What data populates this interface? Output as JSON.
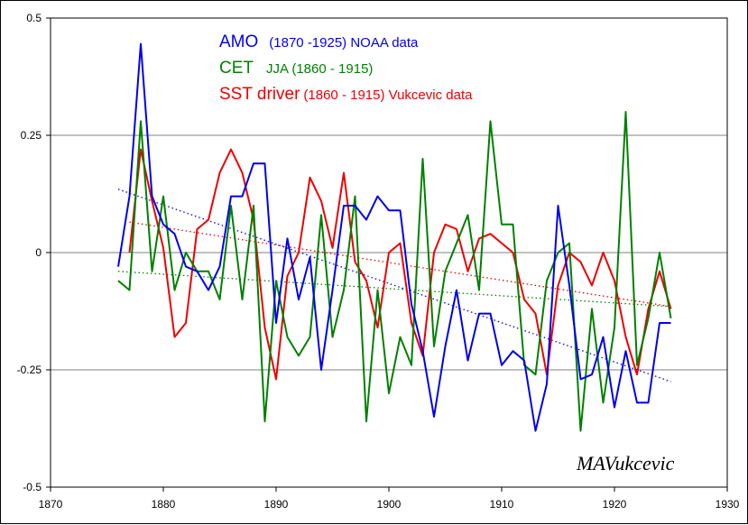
{
  "chart_data": {
    "type": "line",
    "title": "",
    "xlabel": "",
    "ylabel": "",
    "xlim": [
      1870,
      1930
    ],
    "ylim": [
      -0.5,
      0.5
    ],
    "xticks": [
      "1870",
      "1880",
      "1890",
      "1900",
      "1910",
      "1920",
      "1930"
    ],
    "yticks": [
      "0.5",
      "0.25",
      "0",
      "-0.25",
      "-0.5"
    ],
    "grid": "horizontal",
    "legend_position": "top-center",
    "signature": "MAVukcevic",
    "legend": [
      {
        "key": "amo",
        "main": "AMO",
        "detail": "(1870 -1925) NOAA data",
        "color": "#0000ee"
      },
      {
        "key": "cet",
        "main": "CET",
        "detail": "JJA (1860 - 1915)",
        "color": "#008000"
      },
      {
        "key": "sst",
        "main": "SST driver",
        "detail": "(1860 - 1915) Vukcevic data",
        "color": "#ee0000"
      }
    ],
    "series": [
      {
        "key": "amo",
        "color": "#0000ee",
        "x": [
          1876,
          1877,
          1878,
          1879,
          1880,
          1881,
          1882,
          1883,
          1884,
          1885,
          1886,
          1887,
          1888,
          1889,
          1890,
          1891,
          1892,
          1893,
          1894,
          1895,
          1896,
          1897,
          1898,
          1899,
          1900,
          1901,
          1902,
          1903,
          1904,
          1905,
          1906,
          1907,
          1908,
          1909,
          1910,
          1911,
          1912,
          1913,
          1914,
          1915,
          1916,
          1917,
          1918,
          1919,
          1920,
          1921,
          1922,
          1923,
          1924,
          1925
        ],
        "values": [
          -0.03,
          0.12,
          0.445,
          0.12,
          0.06,
          0.04,
          -0.03,
          -0.04,
          -0.08,
          -0.03,
          0.12,
          0.12,
          0.19,
          0.19,
          -0.15,
          0.03,
          -0.1,
          -0.01,
          -0.25,
          -0.08,
          0.1,
          0.1,
          0.07,
          0.12,
          0.09,
          0.09,
          -0.11,
          -0.21,
          -0.35,
          -0.2,
          -0.08,
          -0.23,
          -0.13,
          -0.13,
          -0.24,
          -0.21,
          -0.23,
          -0.38,
          -0.28,
          0.1,
          -0.07,
          -0.27,
          -0.26,
          -0.18,
          -0.33,
          -0.21,
          -0.32,
          -0.32,
          -0.15,
          -0.15
        ],
        "trend": [
          0.135,
          -0.275
        ]
      },
      {
        "key": "cet",
        "color": "#008000",
        "x": [
          1876,
          1877,
          1878,
          1879,
          1880,
          1881,
          1882,
          1883,
          1884,
          1885,
          1886,
          1887,
          1888,
          1889,
          1890,
          1891,
          1892,
          1893,
          1894,
          1895,
          1896,
          1897,
          1898,
          1899,
          1900,
          1901,
          1902,
          1903,
          1904,
          1905,
          1906,
          1907,
          1908,
          1909,
          1910,
          1911,
          1912,
          1913,
          1914,
          1915,
          1916,
          1917,
          1918,
          1919,
          1920,
          1921,
          1922,
          1923,
          1924,
          1925
        ],
        "values": [
          -0.06,
          -0.08,
          0.28,
          -0.04,
          0.12,
          -0.08,
          0.0,
          -0.04,
          -0.04,
          -0.1,
          0.1,
          -0.1,
          0.1,
          -0.36,
          -0.06,
          -0.18,
          -0.22,
          -0.18,
          0.08,
          -0.18,
          -0.08,
          0.12,
          -0.36,
          -0.08,
          -0.3,
          -0.18,
          -0.24,
          0.2,
          -0.2,
          -0.04,
          0.02,
          0.08,
          -0.08,
          0.28,
          0.06,
          0.06,
          -0.24,
          -0.26,
          -0.06,
          0.0,
          0.02,
          -0.38,
          -0.12,
          -0.32,
          -0.16,
          0.3,
          -0.24,
          -0.14,
          0.0,
          -0.14
        ],
        "trend": [
          -0.04,
          -0.115
        ]
      },
      {
        "key": "sst",
        "color": "#ee0000",
        "x": [
          1877,
          1878,
          1879,
          1880,
          1881,
          1882,
          1883,
          1884,
          1885,
          1886,
          1887,
          1888,
          1889,
          1890,
          1891,
          1892,
          1893,
          1894,
          1895,
          1896,
          1897,
          1898,
          1899,
          1900,
          1901,
          1902,
          1903,
          1904,
          1905,
          1906,
          1907,
          1908,
          1909,
          1910,
          1911,
          1912,
          1913,
          1914,
          1915,
          1916,
          1917,
          1918,
          1919,
          1920,
          1921,
          1922,
          1923,
          1924,
          1925
        ],
        "values": [
          0.0,
          0.22,
          0.11,
          0.01,
          -0.18,
          -0.15,
          0.05,
          0.07,
          0.17,
          0.22,
          0.17,
          0.07,
          -0.16,
          -0.27,
          -0.05,
          0.0,
          0.16,
          0.11,
          0.01,
          0.17,
          -0.02,
          -0.06,
          -0.16,
          0.0,
          0.02,
          -0.15,
          -0.22,
          0.0,
          0.06,
          0.05,
          -0.04,
          0.03,
          0.04,
          0.02,
          0.0,
          -0.1,
          -0.13,
          -0.26,
          -0.07,
          0.0,
          -0.02,
          -0.07,
          0.0,
          -0.06,
          -0.18,
          -0.26,
          -0.12,
          -0.04,
          -0.12
        ],
        "trend": [
          0.065,
          -0.115
        ]
      }
    ]
  }
}
